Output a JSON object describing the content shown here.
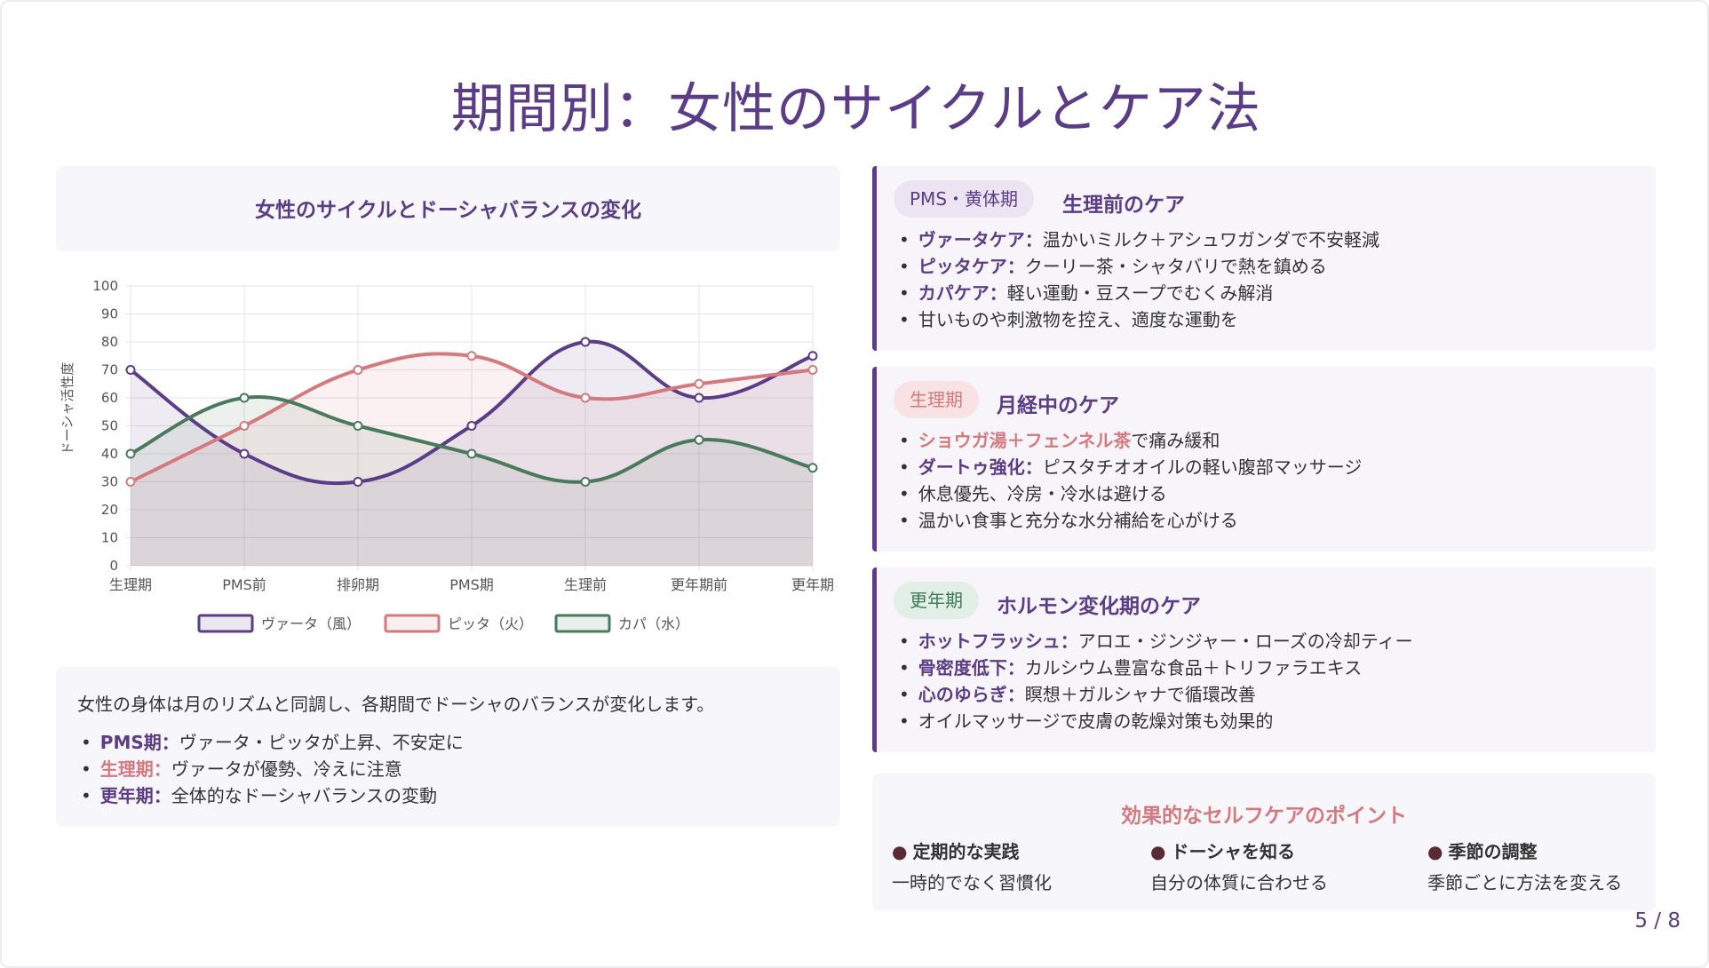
{
  "title": "期間別：女性のサイクルとケア法",
  "chart_data": {
    "type": "line",
    "title": "女性のサイクルとドーシャバランスの変化",
    "ylabel": "ドーシャ活性度",
    "xlabel": "",
    "ylim": [
      0,
      100
    ],
    "yticks": [
      "0",
      "10",
      "20",
      "30",
      "40",
      "50",
      "60",
      "70",
      "80",
      "90",
      "100"
    ],
    "categories": [
      "生理期",
      "PMS前",
      "排卵期",
      "PMS期",
      "生理前",
      "更年期前",
      "更年期"
    ],
    "grid": true,
    "legend_position": "bottom",
    "series": [
      {
        "name": "ヴァータ（風）",
        "color": "#5b3c86",
        "fill": "#5b3c86",
        "values": [
          70,
          40,
          30,
          50,
          80,
          60,
          75
        ]
      },
      {
        "name": "ピッタ（火）",
        "color": "#d47a7f",
        "fill": "#d47a7f",
        "values": [
          30,
          50,
          70,
          75,
          60,
          65,
          70
        ]
      },
      {
        "name": "カパ（水）",
        "color": "#4a7a5c",
        "fill": "#4a7a5c",
        "values": [
          40,
          60,
          50,
          40,
          30,
          45,
          35
        ]
      }
    ]
  },
  "description": {
    "intro": "女性の身体は月のリズムと同調し、各期間でドーシャのバランスが変化します。",
    "items": [
      {
        "key": "PMS期：",
        "text": "ヴァータ・ピッタが上昇、不安定に"
      },
      {
        "key": "生理期：",
        "text": "ヴァータが優勢、冷えに注意"
      },
      {
        "key": "更年期：",
        "text": "全体的なドーシャバランスの変動"
      }
    ]
  },
  "care_sections": [
    {
      "badge": "PMS・黄体期",
      "heading": "生理前のケア",
      "items": [
        {
          "key": "ヴァータケア：",
          "text": "温かいミルク＋アシュワガンダで不安軽減"
        },
        {
          "key": "ピッタケア：",
          "text": "クーリー茶・シャタバリで熱を鎮める"
        },
        {
          "key": "カパケア：",
          "text": "軽い運動・豆スープでむくみ解消"
        },
        {
          "key": "",
          "text": "甘いものや刺激物を控え、適度な運動を"
        }
      ]
    },
    {
      "badge": "生理期",
      "heading": "月経中のケア",
      "items": [
        {
          "key": "ショウガ湯＋フェンネル茶",
          "text": "で痛み緩和"
        },
        {
          "key": "ダートゥ強化：",
          "text": "ピスタチオオイルの軽い腹部マッサージ"
        },
        {
          "key": "",
          "text": "休息優先、冷房・冷水は避ける"
        },
        {
          "key": "",
          "text": "温かい食事と充分な水分補給を心がける"
        }
      ]
    },
    {
      "badge": "更年期",
      "heading": "ホルモン変化期のケア",
      "items": [
        {
          "key": "ホットフラッシュ：",
          "text": "アロエ・ジンジャー・ローズの冷却ティー"
        },
        {
          "key": "骨密度低下：",
          "text": "カルシウム豊富な食品＋トリファラエキス"
        },
        {
          "key": "心のゆらぎ：",
          "text": "瞑想＋ガルシャナで循環改善"
        },
        {
          "key": "",
          "text": "オイルマッサージで皮膚の乾燥対策も効果的"
        }
      ]
    }
  ],
  "points": {
    "title": "効果的なセルフケアのポイント",
    "items": [
      {
        "name": "定期的な実践",
        "desc": "一時的でなく習慣化"
      },
      {
        "name": "ドーシャを知る",
        "desc": "自分の体質に合わせる"
      },
      {
        "name": "季節の調整",
        "desc": "季節ごとに方法を変える"
      }
    ]
  },
  "page_indicator": "5 / 8"
}
